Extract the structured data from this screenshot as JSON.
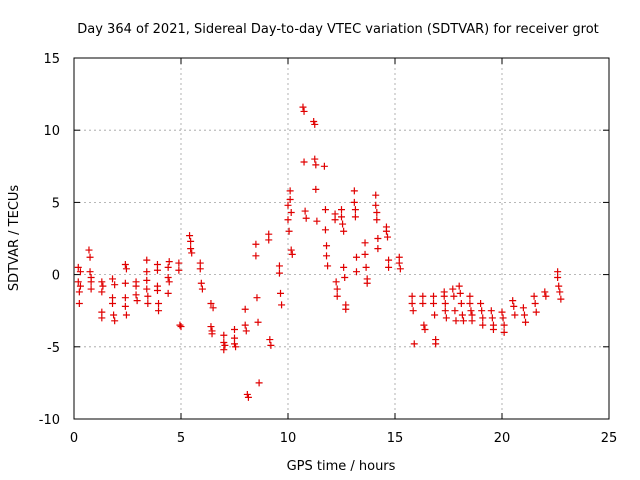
{
  "chart_data": {
    "type": "scatter",
    "title": "Day 364 of 2021, Sidereal Day-to-day VTEC variation (SDTVAR) for receiver grot",
    "xlabel": "GPS time / hours",
    "ylabel": "SDTVAR / TECUs",
    "xlim": [
      0,
      25
    ],
    "ylim": [
      -10,
      15
    ],
    "xticks": [
      0,
      5,
      10,
      15,
      20,
      25
    ],
    "yticks": [
      -10,
      -5,
      0,
      5,
      10,
      15
    ],
    "grid": true,
    "marker": "+",
    "color": "#e00000",
    "series": [
      {
        "name": "SDTVAR",
        "points": [
          [
            0.2,
            0.5
          ],
          [
            0.2,
            -0.5
          ],
          [
            0.25,
            -1.2
          ],
          [
            0.25,
            -2.0
          ],
          [
            0.3,
            0.2
          ],
          [
            0.3,
            -0.8
          ],
          [
            0.7,
            1.7
          ],
          [
            0.75,
            1.2
          ],
          [
            0.75,
            0.2
          ],
          [
            0.8,
            -0.5
          ],
          [
            0.8,
            -1.0
          ],
          [
            0.8,
            -0.2
          ],
          [
            1.3,
            -0.5
          ],
          [
            1.3,
            -1.2
          ],
          [
            1.3,
            -2.6
          ],
          [
            1.3,
            -3.0
          ],
          [
            1.35,
            -0.8
          ],
          [
            1.8,
            -0.3
          ],
          [
            1.8,
            -1.6
          ],
          [
            1.8,
            -2.0
          ],
          [
            1.85,
            -2.8
          ],
          [
            1.9,
            -3.2
          ],
          [
            1.9,
            -0.7
          ],
          [
            2.4,
            0.7
          ],
          [
            2.4,
            -0.6
          ],
          [
            2.4,
            -1.6
          ],
          [
            2.4,
            -2.2
          ],
          [
            2.45,
            -2.8
          ],
          [
            2.45,
            0.4
          ],
          [
            2.9,
            -0.5
          ],
          [
            2.9,
            -0.8
          ],
          [
            2.9,
            -1.4
          ],
          [
            2.95,
            -1.8
          ],
          [
            3.4,
            1.0
          ],
          [
            3.4,
            0.2
          ],
          [
            3.4,
            -0.4
          ],
          [
            3.4,
            -1.0
          ],
          [
            3.45,
            -1.5
          ],
          [
            3.45,
            -2.0
          ],
          [
            3.9,
            0.7
          ],
          [
            3.9,
            0.3
          ],
          [
            3.9,
            -0.8
          ],
          [
            3.9,
            -1.1
          ],
          [
            3.95,
            -2.0
          ],
          [
            3.95,
            -2.5
          ],
          [
            4.4,
            0.5
          ],
          [
            4.4,
            -0.2
          ],
          [
            4.4,
            -1.3
          ],
          [
            4.45,
            0.9
          ],
          [
            4.45,
            -0.5
          ],
          [
            4.9,
            0.8
          ],
          [
            4.9,
            0.3
          ],
          [
            4.95,
            -3.5
          ],
          [
            5.0,
            -3.6
          ],
          [
            5.4,
            2.7
          ],
          [
            5.45,
            2.3
          ],
          [
            5.45,
            1.8
          ],
          [
            5.5,
            1.5
          ],
          [
            5.9,
            0.8
          ],
          [
            5.9,
            0.4
          ],
          [
            5.95,
            -0.6
          ],
          [
            6.0,
            -1.0
          ],
          [
            6.4,
            -2.0
          ],
          [
            6.4,
            -3.6
          ],
          [
            6.45,
            -3.9
          ],
          [
            6.45,
            -4.1
          ],
          [
            6.5,
            -2.3
          ],
          [
            7.0,
            -4.2
          ],
          [
            7.0,
            -4.7
          ],
          [
            7.0,
            -5.2
          ],
          [
            7.05,
            -4.9
          ],
          [
            7.5,
            -4.4
          ],
          [
            7.5,
            -4.8
          ],
          [
            7.5,
            -3.8
          ],
          [
            7.55,
            -5.0
          ],
          [
            8.0,
            -2.4
          ],
          [
            8.0,
            -3.5
          ],
          [
            8.05,
            -3.9
          ],
          [
            8.1,
            -8.3
          ],
          [
            8.15,
            -8.5
          ],
          [
            8.5,
            2.1
          ],
          [
            8.5,
            1.3
          ],
          [
            8.55,
            -1.6
          ],
          [
            8.6,
            -3.3
          ],
          [
            8.65,
            -7.5
          ],
          [
            9.1,
            2.8
          ],
          [
            9.1,
            2.4
          ],
          [
            9.15,
            -4.5
          ],
          [
            9.2,
            -4.9
          ],
          [
            9.6,
            0.6
          ],
          [
            9.6,
            0.1
          ],
          [
            9.65,
            -1.3
          ],
          [
            9.7,
            -2.1
          ],
          [
            10.0,
            4.8
          ],
          [
            10.0,
            3.8
          ],
          [
            10.05,
            3.0
          ],
          [
            10.1,
            5.8
          ],
          [
            10.1,
            5.2
          ],
          [
            10.15,
            4.3
          ],
          [
            10.15,
            1.7
          ],
          [
            10.2,
            1.4
          ],
          [
            10.7,
            11.6
          ],
          [
            10.75,
            11.3
          ],
          [
            10.75,
            7.8
          ],
          [
            10.8,
            4.4
          ],
          [
            10.85,
            3.9
          ],
          [
            11.2,
            10.6
          ],
          [
            11.25,
            10.4
          ],
          [
            11.25,
            8.0
          ],
          [
            11.3,
            7.6
          ],
          [
            11.3,
            5.9
          ],
          [
            11.35,
            3.7
          ],
          [
            11.7,
            7.5
          ],
          [
            11.75,
            4.5
          ],
          [
            11.75,
            3.1
          ],
          [
            11.8,
            2.0
          ],
          [
            11.8,
            1.3
          ],
          [
            11.85,
            0.6
          ],
          [
            12.2,
            4.2
          ],
          [
            12.2,
            3.8
          ],
          [
            12.25,
            -0.5
          ],
          [
            12.3,
            -1.5
          ],
          [
            12.3,
            -1.0
          ],
          [
            12.5,
            4.5
          ],
          [
            12.5,
            4.0
          ],
          [
            12.55,
            3.5
          ],
          [
            12.6,
            3.0
          ],
          [
            12.6,
            0.5
          ],
          [
            12.65,
            -0.2
          ],
          [
            12.7,
            -2.1
          ],
          [
            12.7,
            -2.4
          ],
          [
            13.1,
            5.8
          ],
          [
            13.1,
            5.0
          ],
          [
            13.15,
            4.5
          ],
          [
            13.15,
            4.0
          ],
          [
            13.2,
            1.2
          ],
          [
            13.2,
            0.2
          ],
          [
            13.6,
            2.2
          ],
          [
            13.6,
            1.4
          ],
          [
            13.65,
            0.5
          ],
          [
            13.7,
            -0.3
          ],
          [
            13.7,
            -0.6
          ],
          [
            14.1,
            5.5
          ],
          [
            14.1,
            4.8
          ],
          [
            14.15,
            4.3
          ],
          [
            14.15,
            3.8
          ],
          [
            14.2,
            2.5
          ],
          [
            14.2,
            1.8
          ],
          [
            14.6,
            3.3
          ],
          [
            14.6,
            3.0
          ],
          [
            14.65,
            2.6
          ],
          [
            14.7,
            1.0
          ],
          [
            14.7,
            0.5
          ],
          [
            15.2,
            1.2
          ],
          [
            15.2,
            0.8
          ],
          [
            15.25,
            0.4
          ],
          [
            15.8,
            -1.5
          ],
          [
            15.8,
            -2.0
          ],
          [
            15.85,
            -2.5
          ],
          [
            15.9,
            -4.8
          ],
          [
            16.3,
            -1.5
          ],
          [
            16.3,
            -2.0
          ],
          [
            16.35,
            -3.5
          ],
          [
            16.4,
            -3.8
          ],
          [
            16.8,
            -1.5
          ],
          [
            16.8,
            -2.0
          ],
          [
            16.85,
            -2.8
          ],
          [
            16.9,
            -4.5
          ],
          [
            16.9,
            -4.8
          ],
          [
            17.3,
            -1.2
          ],
          [
            17.3,
            -1.5
          ],
          [
            17.35,
            -2.0
          ],
          [
            17.35,
            -2.5
          ],
          [
            17.4,
            -3.0
          ],
          [
            17.7,
            -1.0
          ],
          [
            17.75,
            -1.5
          ],
          [
            17.8,
            -2.5
          ],
          [
            17.85,
            -3.2
          ],
          [
            18.0,
            -0.8
          ],
          [
            18.05,
            -1.3
          ],
          [
            18.1,
            -2.0
          ],
          [
            18.15,
            -2.8
          ],
          [
            18.2,
            -3.2
          ],
          [
            18.5,
            -1.5
          ],
          [
            18.5,
            -2.0
          ],
          [
            18.55,
            -2.5
          ],
          [
            18.6,
            -2.8
          ],
          [
            18.6,
            -3.2
          ],
          [
            19.0,
            -2.0
          ],
          [
            19.05,
            -2.5
          ],
          [
            19.1,
            -3.0
          ],
          [
            19.1,
            -3.5
          ],
          [
            19.5,
            -2.5
          ],
          [
            19.55,
            -3.0
          ],
          [
            19.6,
            -3.5
          ],
          [
            19.6,
            -3.8
          ],
          [
            20.0,
            -2.6
          ],
          [
            20.05,
            -3.0
          ],
          [
            20.1,
            -3.5
          ],
          [
            20.1,
            -4.0
          ],
          [
            20.5,
            -1.8
          ],
          [
            20.55,
            -2.2
          ],
          [
            20.6,
            -2.8
          ],
          [
            21.0,
            -2.3
          ],
          [
            21.05,
            -2.8
          ],
          [
            21.1,
            -3.3
          ],
          [
            21.5,
            -1.5
          ],
          [
            21.55,
            -2.0
          ],
          [
            21.6,
            -2.6
          ],
          [
            22.0,
            -1.2
          ],
          [
            22.05,
            -1.5
          ],
          [
            22.6,
            0.2
          ],
          [
            22.6,
            -0.2
          ],
          [
            22.65,
            -0.8
          ],
          [
            22.7,
            -1.2
          ],
          [
            22.75,
            -1.7
          ]
        ]
      }
    ]
  }
}
